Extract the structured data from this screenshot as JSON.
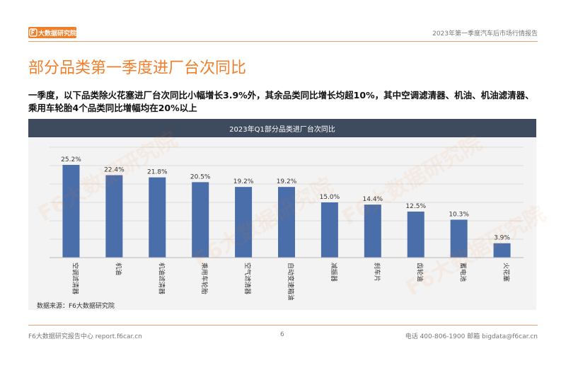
{
  "header": {
    "logo_text": "大数据研究院",
    "report_title": "2023年第一季度汽车后市场行情报告"
  },
  "page_title": "部分品类第一季度进厂台次同比",
  "summary": "一季度，以下品类除火花塞进厂台次同比小幅增长3.9%外，其余品类同比增长均超10%，其中空调滤清器、机油、机油滤清器、乘用车轮胎4个品类同比增幅均在20%以上",
  "watermark": "F6大数据研究院",
  "chart_header": "2023年Q1部分品类进厂台次同比",
  "chart_data": {
    "type": "bar",
    "title": "2023年Q1部分品类进厂台次同比",
    "categories": [
      "空调滤清器",
      "机油",
      "机油滤清器",
      "乘用车轮胎",
      "空气滤清器",
      "自动变速箱油",
      "减振器",
      "刹车片",
      "齿轮油",
      "蓄电池",
      "火花塞"
    ],
    "values": [
      25.2,
      22.4,
      21.8,
      20.5,
      19.2,
      19.2,
      15.0,
      14.4,
      12.5,
      10.3,
      3.9
    ],
    "value_labels": [
      "25.2%",
      "22.4%",
      "21.8%",
      "20.5%",
      "19.2%",
      "19.2%",
      "15.0%",
      "14.4%",
      "12.5%",
      "10.3%",
      "3.9%"
    ],
    "ylim": [
      0,
      30
    ],
    "grid": true,
    "color": "#4a6ea9"
  },
  "source": "数据来源：F6大数据研究院",
  "footer": {
    "left": "F6大数据研究报告中心 report.f6car.cn",
    "page": "6",
    "right": "电话 400-806-1900  邮箱 bigdata@f6car.cn"
  },
  "colors": {
    "brand": "#f07f2b",
    "header_bg": "#3e4a5e",
    "bar": "#4a6ea9",
    "panel_bg": "#f3f3f3"
  }
}
